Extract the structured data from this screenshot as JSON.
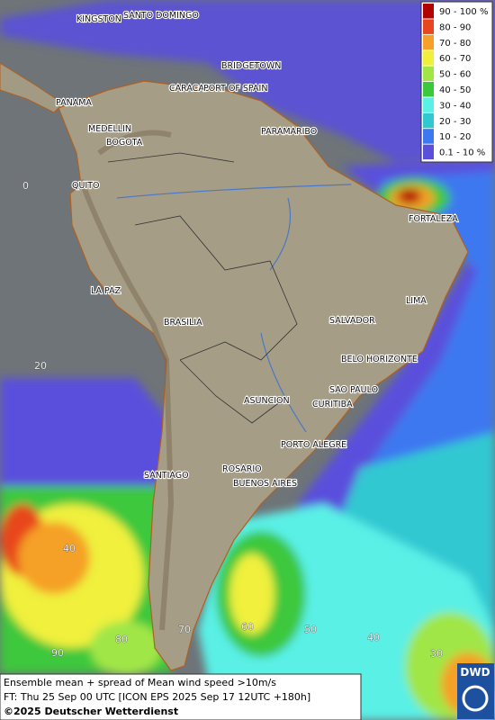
{
  "legend": [
    {
      "label": "90 - 100 %",
      "color": "#b00000"
    },
    {
      "label": "80 - 90",
      "color": "#e8461e"
    },
    {
      "label": "70 - 80",
      "color": "#f5a028"
    },
    {
      "label": "60 - 70",
      "color": "#f0f03c"
    },
    {
      "label": "50 - 60",
      "color": "#a0e646"
    },
    {
      "label": "40 - 50",
      "color": "#3cc83c"
    },
    {
      "label": "30 - 40",
      "color": "#5af0e6"
    },
    {
      "label": "20 - 30",
      "color": "#32c8d2"
    },
    {
      "label": "10 - 20",
      "color": "#3c78f0"
    },
    {
      "label": "0.1 - 10 %",
      "color": "#5a50dc"
    }
  ],
  "places": [
    "KINGSTON",
    "SANTO DOMINGO",
    "BRIDGETOWN",
    "CARACAS",
    "PORT OF SPAIN",
    "PANAMA",
    "PARAMARIBO",
    "MEDELLIN",
    "BOGOTA",
    "QUITO",
    "FORTALEZA",
    "LIMA",
    "SALVADOR",
    "BRASILIA",
    "LA PAZ",
    "BELO HORIZONTE",
    "SAO PAULO",
    "ASUNCION",
    "CURITIBA",
    "PORTO ALEGRE",
    "ROSARIO",
    "BUENOS AIRES",
    "SANTIAGO"
  ],
  "grid_labels": [
    "0",
    "20",
    "40",
    "90",
    "80",
    "70",
    "60",
    "50",
    "40",
    "30"
  ],
  "footer": {
    "line1": "Ensemble mean + spread of Mean wind speed >10m/s",
    "line2": "FT: Thu 25 Sep 00 UTC [ICON EPS 2025 Sep 17 12UTC +180h]",
    "copyright": "©2025 Deutscher Wetterdienst"
  },
  "logo": "DWD"
}
